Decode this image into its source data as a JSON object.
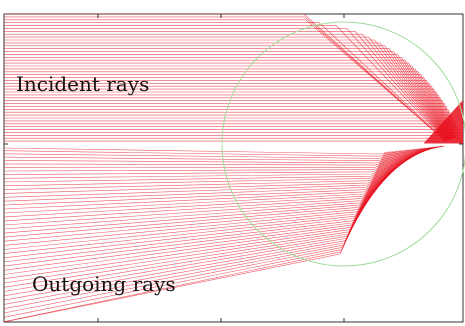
{
  "labels": {
    "incident": "Incident rays",
    "outgoing": "Outgoing rays"
  },
  "colors": {
    "ray": "#e8101e",
    "circle": "#9fdc9a",
    "frame": "#000000",
    "background": "#ffffff"
  }
}
